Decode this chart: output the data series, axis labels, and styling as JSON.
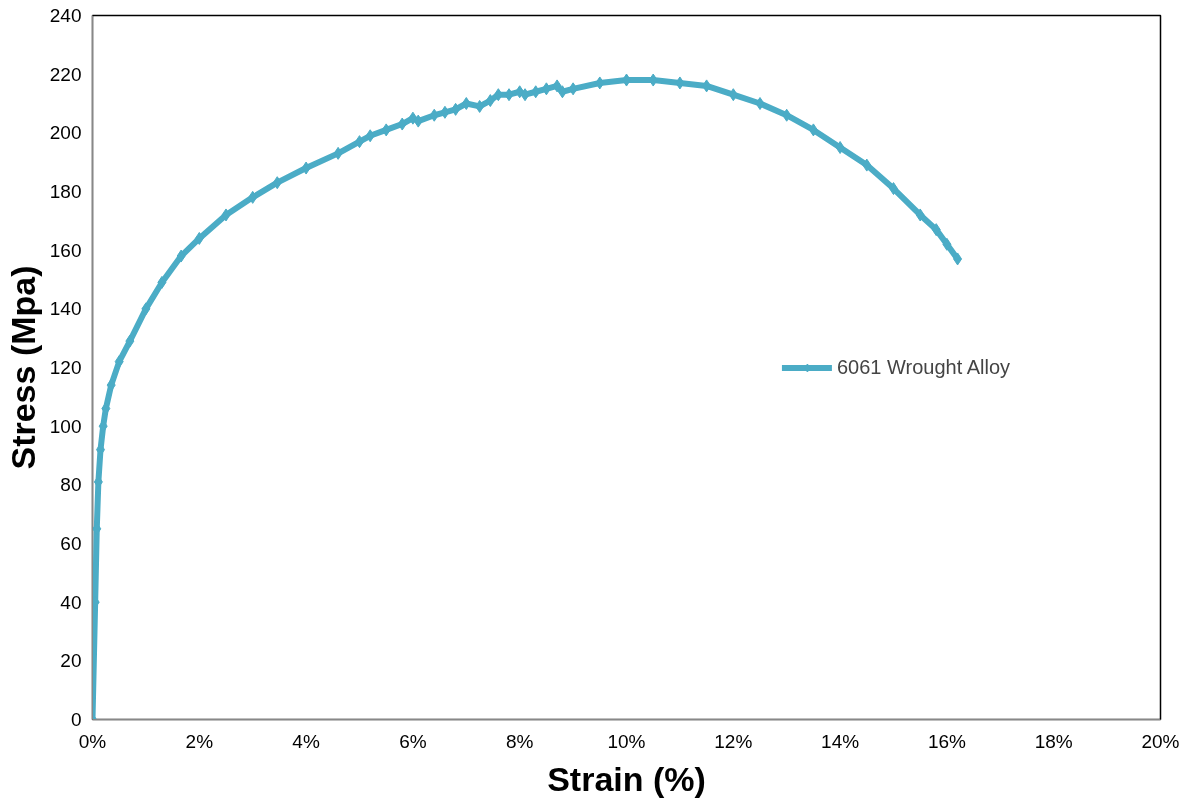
{
  "chart_data": {
    "type": "line",
    "xlabel": "Strain (%)",
    "ylabel": "Stress (Mpa)",
    "xlim": [
      0,
      20
    ],
    "ylim": [
      0,
      240
    ],
    "xticks": [
      {
        "value": 0,
        "label": "0%"
      },
      {
        "value": 2,
        "label": "2%"
      },
      {
        "value": 4,
        "label": "4%"
      },
      {
        "value": 6,
        "label": "6%"
      },
      {
        "value": 8,
        "label": "8%"
      },
      {
        "value": 10,
        "label": "10%"
      },
      {
        "value": 12,
        "label": "12%"
      },
      {
        "value": 14,
        "label": "14%"
      },
      {
        "value": 16,
        "label": "16%"
      },
      {
        "value": 18,
        "label": "18%"
      },
      {
        "value": 20,
        "label": "20%"
      }
    ],
    "yticks": [
      0,
      20,
      40,
      60,
      80,
      100,
      120,
      140,
      160,
      180,
      200,
      220,
      240
    ],
    "grid": false,
    "legend": "right",
    "marker": "diamond",
    "line_style": "solid",
    "series": [
      {
        "name": "6061 Wrought Alloy",
        "color": "#4bacc6",
        "x": [
          0,
          0.05,
          0.08,
          0.11,
          0.15,
          0.2,
          0.25,
          0.35,
          0.5,
          0.7,
          1.0,
          1.3,
          1.66,
          2.0,
          2.5,
          3.0,
          3.46,
          4.0,
          4.6,
          5.0,
          5.2,
          5.5,
          5.8,
          6.0,
          6.1,
          6.4,
          6.6,
          6.8,
          7.0,
          7.25,
          7.45,
          7.6,
          7.8,
          8.0,
          8.1,
          8.3,
          8.5,
          8.7,
          8.8,
          9.0,
          9.5,
          10.0,
          10.5,
          11.0,
          11.5,
          12.0,
          12.5,
          13.0,
          13.5,
          14.0,
          14.5,
          15.0,
          15.5,
          15.8,
          16.0,
          16.2
        ],
        "values": [
          0,
          40,
          65,
          81,
          92,
          100,
          106,
          114,
          122,
          129,
          140,
          149,
          158,
          164,
          172,
          178,
          183,
          188,
          193,
          197,
          199,
          201,
          203,
          205,
          204,
          206,
          207,
          208,
          210,
          209,
          211,
          213,
          213,
          214,
          213,
          214,
          215,
          216,
          214,
          215,
          217,
          218,
          218,
          217,
          216,
          213,
          210,
          206,
          201,
          195,
          189,
          181,
          172,
          167,
          162,
          157
        ]
      }
    ]
  }
}
